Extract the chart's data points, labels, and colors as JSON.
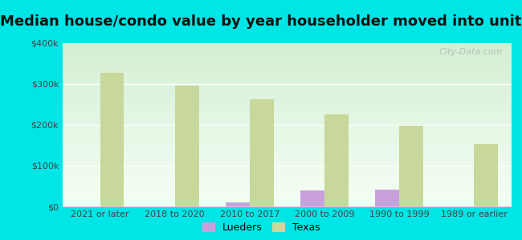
{
  "title": "Median house/condo value by year householder moved into unit",
  "categories": [
    "2021 or later",
    "2018 to 2020",
    "2010 to 2017",
    "2000 to 2009",
    "1990 to 1999",
    "1989 or earlier"
  ],
  "lueders_values": [
    0,
    0,
    10000,
    40000,
    42000,
    0
  ],
  "texas_values": [
    327000,
    297000,
    262000,
    226000,
    198000,
    152000
  ],
  "lueders_color": "#c9a0dc",
  "texas_color": "#c8d89a",
  "background_color": "#00e5e5",
  "ylim": [
    0,
    400000
  ],
  "yticks": [
    0,
    100000,
    200000,
    300000,
    400000
  ],
  "ytick_labels": [
    "$0",
    "$100k",
    "$200k",
    "$300k",
    "$400k"
  ],
  "bar_width": 0.32,
  "title_fontsize": 13,
  "tick_fontsize": 8,
  "legend_labels": [
    "Lueders",
    "Texas"
  ],
  "watermark": "City-Data.com",
  "grid_color": "#ffffff",
  "spine_color": "#cccccc",
  "grad_bottom": "#d4efd4",
  "grad_top": "#f5fff5"
}
